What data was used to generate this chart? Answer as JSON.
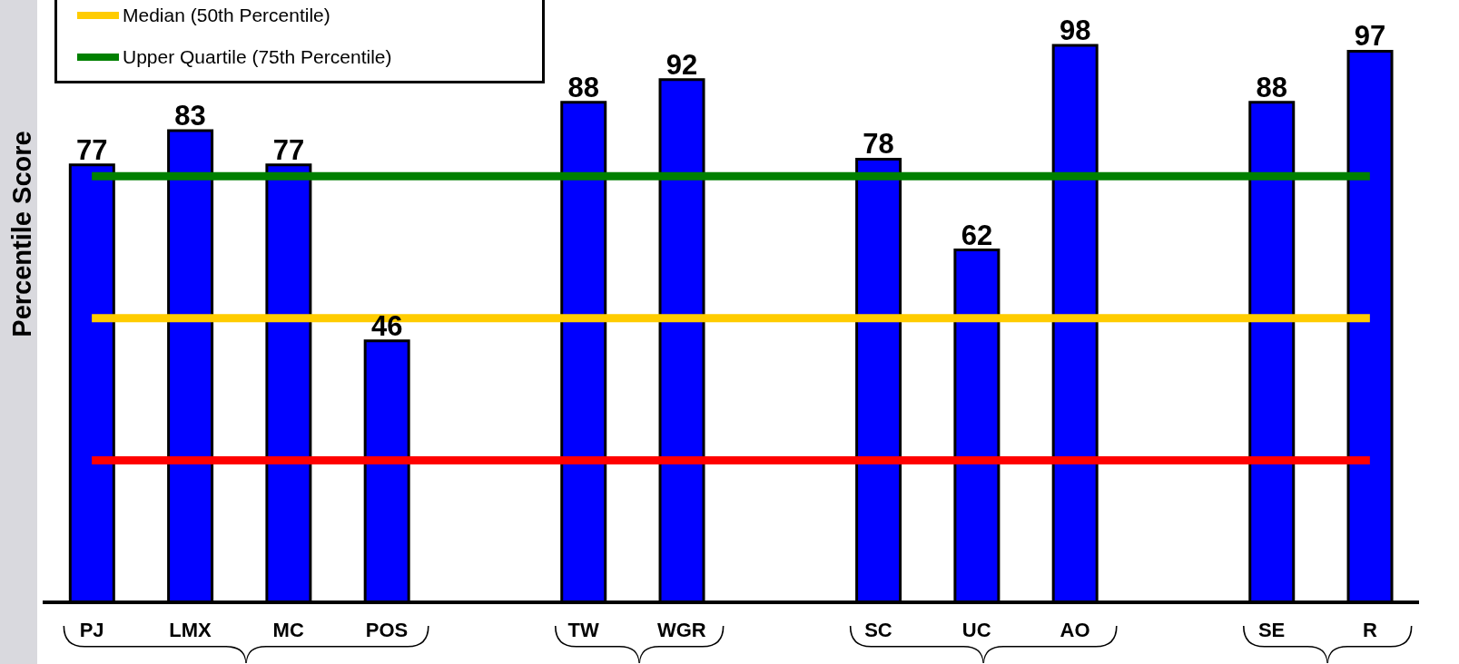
{
  "chart_data": {
    "type": "bar",
    "ylabel": "Percentile Score",
    "categories": [
      "PJ",
      "LMX",
      "MC",
      "POS",
      null,
      "TW",
      "WGR",
      null,
      "SC",
      "UC",
      "AO",
      null,
      "SE",
      "R"
    ],
    "values": [
      77,
      83,
      77,
      46,
      null,
      88,
      92,
      null,
      78,
      62,
      98,
      null,
      88,
      97
    ],
    "color": "#0000ff",
    "ylim": [
      0,
      106
    ],
    "data_labels": true,
    "legend": "top left",
    "ref_lines": [
      {
        "axis": "y",
        "value": 75,
        "label": "Upper Quartile (75th Percentile)",
        "color": "#008000"
      },
      {
        "axis": "y",
        "value": 50,
        "label": "Median (50th Percentile)",
        "color": "#ffcc00"
      },
      {
        "axis": "y",
        "value": 25,
        "label": null,
        "color": "#ff0000"
      }
    ]
  }
}
